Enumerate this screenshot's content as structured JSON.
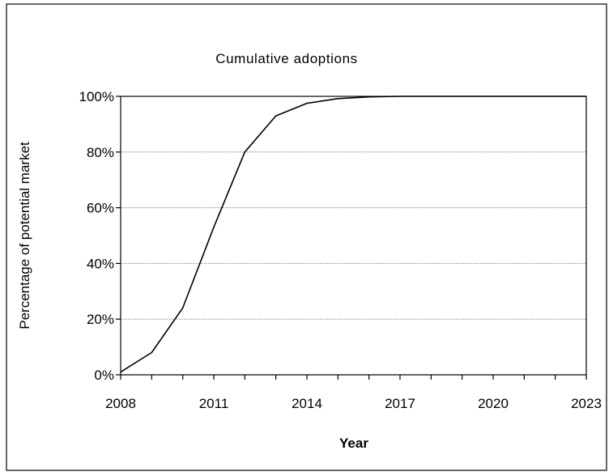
{
  "chart_data": {
    "type": "line",
    "title": "Cumulative adoptions",
    "xlabel": "Year",
    "ylabel": "Percentage of potential market",
    "x": [
      2008,
      2009,
      2010,
      2011,
      2012,
      2013,
      2014,
      2015,
      2016,
      2017,
      2018,
      2019,
      2020,
      2021,
      2022,
      2023
    ],
    "series": [
      {
        "values": [
          0.01,
          0.08,
          0.24,
          0.53,
          0.8,
          0.93,
          0.975,
          0.992,
          0.998,
          1.0,
          1.0,
          1.0,
          1.0,
          1.0,
          1.0,
          1.0
        ]
      }
    ],
    "xlim": [
      2008,
      2023
    ],
    "ylim": [
      0,
      1
    ],
    "x_tick_labels": [
      "2008",
      "2011",
      "2014",
      "2017",
      "2020",
      "2023"
    ],
    "x_tick_values": [
      2008,
      2011,
      2014,
      2017,
      2020,
      2023
    ],
    "y_tick_labels": [
      "0%",
      "20%",
      "40%",
      "60%",
      "80%",
      "100%"
    ],
    "y_tick_values": [
      0,
      0.2,
      0.4,
      0.6,
      0.8,
      1.0
    ],
    "grid": "horizontal dotted",
    "line_color": "#000000",
    "grid_color": "#808080"
  }
}
